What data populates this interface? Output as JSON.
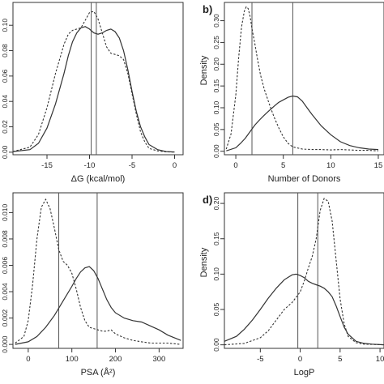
{
  "chart_data": [
    {
      "type": "line",
      "panel_label": "",
      "xlabel": "ΔG (kcal/mol)",
      "ylabel": "",
      "xlim": [
        -19,
        1
      ],
      "ylim": [
        -0.002,
        0.118
      ],
      "xticks": [
        -15,
        -10,
        -5,
        0
      ],
      "yticks": [
        0.0,
        0.02,
        0.04,
        0.06,
        0.08,
        0.1
      ],
      "ytick_decimals": 2,
      "vlines": [
        -9.8,
        -9.2
      ],
      "series": [
        {
          "style": "solid",
          "x": [
            -19,
            -17,
            -16,
            -15,
            -14,
            -13,
            -12.5,
            -12,
            -11.5,
            -11,
            -10.5,
            -10,
            -9.5,
            -9,
            -8.5,
            -8,
            -7.5,
            -7,
            -6.5,
            -6,
            -5.5,
            -5,
            -4.5,
            -4,
            -3.5,
            -3,
            -2,
            -1,
            0
          ],
          "y": [
            0.0005,
            0.002,
            0.007,
            0.019,
            0.038,
            0.062,
            0.076,
            0.087,
            0.094,
            0.098,
            0.099,
            0.097,
            0.094,
            0.093,
            0.094,
            0.096,
            0.097,
            0.095,
            0.09,
            0.08,
            0.065,
            0.048,
            0.032,
            0.02,
            0.012,
            0.006,
            0.002,
            0.0005,
            0.0002
          ]
        },
        {
          "style": "dashed",
          "x": [
            -19,
            -17,
            -16,
            -15,
            -14,
            -13,
            -12.5,
            -12,
            -11.5,
            -11,
            -10.5,
            -10,
            -9.5,
            -9,
            -8.5,
            -8,
            -7.5,
            -7,
            -6.5,
            -6,
            -5.5,
            -5,
            -4.5,
            -4,
            -3.5,
            -3,
            -2,
            -1,
            0
          ],
          "y": [
            0.0005,
            0.004,
            0.014,
            0.035,
            0.062,
            0.085,
            0.093,
            0.096,
            0.097,
            0.098,
            0.104,
            0.11,
            0.111,
            0.105,
            0.094,
            0.083,
            0.078,
            0.077,
            0.076,
            0.073,
            0.062,
            0.046,
            0.03,
            0.016,
            0.008,
            0.003,
            0.001,
            0.0003,
            0.0001
          ]
        }
      ]
    },
    {
      "type": "line",
      "panel_label": "b)",
      "xlabel": "Number of Donors",
      "ylabel": "Density",
      "xlim": [
        -1.2,
        15.6
      ],
      "ylim": [
        -0.008,
        0.342
      ],
      "xticks": [
        0,
        5,
        10,
        15
      ],
      "yticks": [
        0.0,
        0.05,
        0.1,
        0.15,
        0.2,
        0.25,
        0.3
      ],
      "ytick_decimals": 2,
      "vlines": [
        1.7,
        6.0
      ],
      "series": [
        {
          "style": "dashed",
          "x": [
            -1,
            -0.5,
            0,
            0.3,
            0.6,
            0.9,
            1.1,
            1.3,
            1.5,
            1.7,
            2.0,
            2.3,
            2.6,
            3.0,
            3.5,
            4.0,
            4.5,
            5.0,
            5.5,
            6.0,
            7.0,
            8.0,
            9.0,
            10,
            11,
            12,
            13,
            14,
            15
          ],
          "y": [
            0.005,
            0.04,
            0.13,
            0.215,
            0.285,
            0.322,
            0.332,
            0.328,
            0.31,
            0.282,
            0.248,
            0.21,
            0.175,
            0.142,
            0.11,
            0.08,
            0.055,
            0.033,
            0.018,
            0.01,
            0.005,
            0.004,
            0.004,
            0.003,
            0.004,
            0.003,
            0.002,
            0.002,
            0.001
          ]
        },
        {
          "style": "solid",
          "x": [
            -1,
            0,
            0.5,
            1.0,
            1.5,
            2.0,
            2.5,
            3.0,
            3.5,
            4.0,
            4.5,
            5.0,
            5.5,
            6.0,
            6.5,
            7.0,
            7.5,
            8.0,
            9.0,
            10,
            11,
            12,
            13,
            14,
            15
          ],
          "y": [
            0.001,
            0.008,
            0.018,
            0.03,
            0.045,
            0.06,
            0.072,
            0.083,
            0.093,
            0.103,
            0.112,
            0.118,
            0.124,
            0.127,
            0.125,
            0.115,
            0.1,
            0.085,
            0.058,
            0.038,
            0.022,
            0.013,
            0.008,
            0.005,
            0.004
          ]
        }
      ]
    },
    {
      "type": "line",
      "panel_label": "",
      "xlabel": "PSA (Å²)",
      "ylabel": "",
      "xlim": [
        -35,
        355
      ],
      "ylim": [
        -0.0003,
        0.0115
      ],
      "xticks": [
        0,
        100,
        200,
        300
      ],
      "yticks": [
        0.0,
        0.002,
        0.004,
        0.006,
        0.008,
        0.01
      ],
      "ytick_decimals": 3,
      "vlines": [
        70,
        158
      ],
      "series": [
        {
          "style": "dashed",
          "x": [
            -30,
            -10,
            0,
            10,
            20,
            30,
            40,
            50,
            60,
            70,
            80,
            90,
            100,
            110,
            120,
            130,
            140,
            150,
            160,
            170,
            180,
            190,
            200,
            220,
            240,
            260,
            280,
            300,
            320,
            350
          ],
          "y": [
            0.0001,
            0.0006,
            0.0018,
            0.0045,
            0.008,
            0.0104,
            0.011,
            0.0103,
            0.0088,
            0.0072,
            0.0063,
            0.006,
            0.0054,
            0.0042,
            0.0028,
            0.0018,
            0.0013,
            0.0012,
            0.0011,
            0.001,
            0.001,
            0.0011,
            0.0008,
            0.0005,
            0.0003,
            0.0002,
            0.0001,
            0.0001,
            0.0001,
            0.0
          ]
        },
        {
          "style": "solid",
          "x": [
            -30,
            0,
            20,
            40,
            60,
            80,
            100,
            110,
            120,
            130,
            140,
            150,
            160,
            170,
            180,
            190,
            200,
            220,
            240,
            260,
            280,
            300,
            320,
            350
          ],
          "y": [
            0.0,
            0.0002,
            0.0006,
            0.0013,
            0.0022,
            0.0033,
            0.0044,
            0.005,
            0.0055,
            0.0058,
            0.0059,
            0.0056,
            0.005,
            0.0042,
            0.0034,
            0.0028,
            0.0024,
            0.002,
            0.0018,
            0.0017,
            0.0014,
            0.0011,
            0.0007,
            0.0003
          ]
        }
      ]
    },
    {
      "type": "line",
      "panel_label": "d)",
      "xlabel": "LogP",
      "ylabel": "Density",
      "xlim": [
        -9.5,
        10.5
      ],
      "ylim": [
        -0.005,
        0.215
      ],
      "xticks": [
        -5,
        0,
        5,
        10
      ],
      "yticks": [
        0.0,
        0.05,
        0.1,
        0.15,
        0.2
      ],
      "ytick_decimals": 2,
      "vlines": [
        -0.3,
        2.2
      ],
      "series": [
        {
          "style": "solid",
          "x": [
            -9.5,
            -8,
            -7,
            -6,
            -5,
            -4,
            -3,
            -2,
            -1,
            -0.5,
            0,
            0.5,
            1,
            1.5,
            2,
            2.5,
            3,
            3.5,
            4,
            4.5,
            5,
            5.5,
            6,
            7,
            8,
            9,
            10.5
          ],
          "y": [
            0.005,
            0.012,
            0.022,
            0.035,
            0.05,
            0.066,
            0.08,
            0.092,
            0.099,
            0.1,
            0.098,
            0.095,
            0.09,
            0.087,
            0.085,
            0.083,
            0.08,
            0.075,
            0.068,
            0.055,
            0.04,
            0.025,
            0.015,
            0.005,
            0.002,
            0.001,
            0.0
          ]
        },
        {
          "style": "dashed",
          "x": [
            -9.5,
            -7,
            -5,
            -4,
            -3,
            -2,
            -1,
            0,
            0.5,
            1,
            1.5,
            2,
            2.5,
            3,
            3.5,
            4,
            4.5,
            5,
            5.5,
            6,
            7,
            8,
            10.5
          ],
          "y": [
            0.0,
            0.002,
            0.01,
            0.02,
            0.035,
            0.05,
            0.06,
            0.075,
            0.09,
            0.108,
            0.125,
            0.15,
            0.19,
            0.207,
            0.203,
            0.175,
            0.12,
            0.065,
            0.03,
            0.012,
            0.003,
            0.001,
            0.0
          ]
        }
      ]
    }
  ]
}
